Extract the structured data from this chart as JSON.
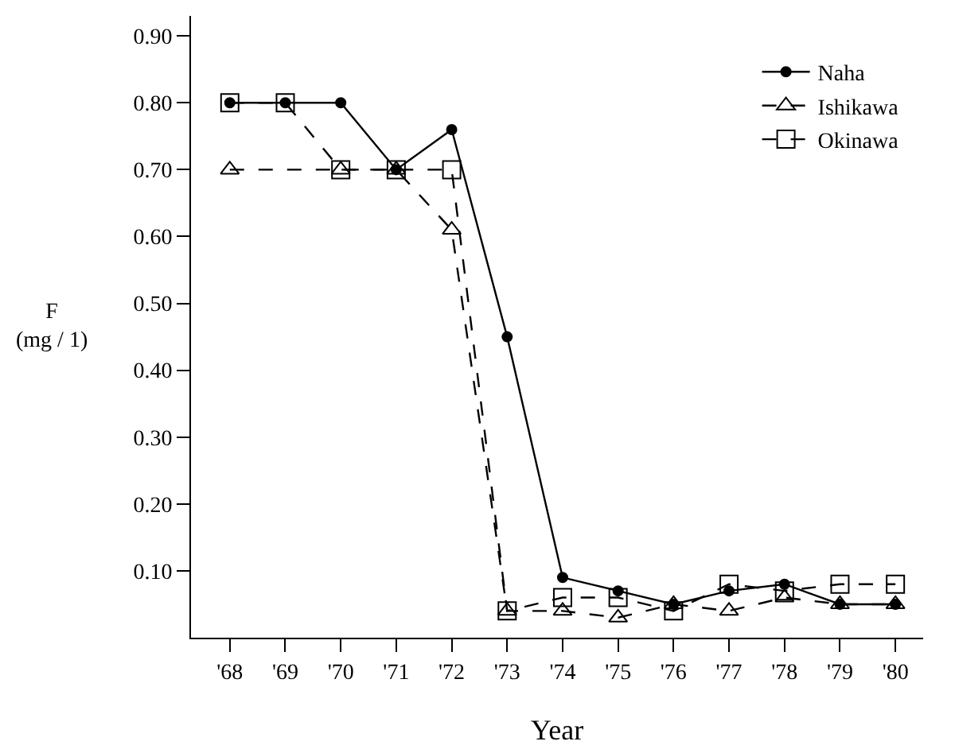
{
  "chart_data": {
    "type": "line",
    "xlabel": "Year",
    "ylabel": "F\n(mg / 1)",
    "categories": [
      "'68",
      "'69",
      "'70",
      "'71",
      "'72",
      "'73",
      "'74",
      "'75",
      "'76",
      "'77",
      "'78",
      "'79",
      "'80"
    ],
    "series": [
      {
        "name": "Naha",
        "color": "#000000",
        "marker": "circle",
        "line_style": "solid",
        "values": [
          0.8,
          0.8,
          0.8,
          0.7,
          0.76,
          0.45,
          0.09,
          0.07,
          0.05,
          0.07,
          0.08,
          0.05,
          0.05
        ]
      },
      {
        "name": "Ishikawa",
        "color": "#000000",
        "marker": "triangle",
        "line_style": "dashed",
        "values": [
          0.7,
          null,
          0.7,
          0.7,
          0.61,
          0.04,
          0.04,
          0.03,
          0.05,
          0.04,
          0.06,
          0.05,
          0.05
        ]
      },
      {
        "name": "Okinawa",
        "color": "#000000",
        "marker": "square",
        "line_style": "dashed",
        "values": [
          0.8,
          0.8,
          0.7,
          0.7,
          0.7,
          0.04,
          0.06,
          0.06,
          0.04,
          0.08,
          0.07,
          0.08,
          0.08
        ]
      }
    ],
    "ylim": [
      0,
      0.93
    ],
    "yticks": [
      {
        "value": 0.1,
        "label": "0.10"
      },
      {
        "value": 0.2,
        "label": "0.20"
      },
      {
        "value": 0.3,
        "label": "0.30"
      },
      {
        "value": 0.4,
        "label": "0.40"
      },
      {
        "value": 0.5,
        "label": "0.50"
      },
      {
        "value": 0.6,
        "label": "0.60"
      },
      {
        "value": 0.7,
        "label": "0.70"
      },
      {
        "value": 0.8,
        "label": "0.80"
      },
      {
        "value": 0.9,
        "label": "0.90"
      }
    ],
    "grid": false,
    "legend": "top right"
  }
}
